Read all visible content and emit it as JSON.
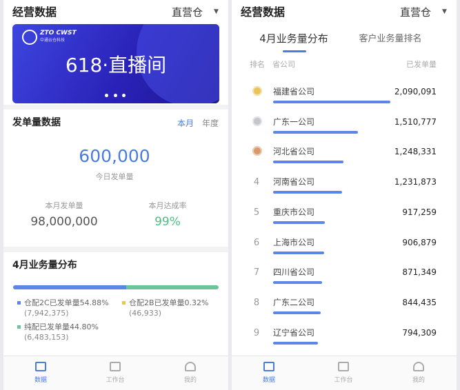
{
  "header": {
    "title": "经营数据",
    "warehouse": "直营仓"
  },
  "banner": {
    "logo": "ZTO CWST",
    "logo_sub": "中通云仓科技",
    "text": "618·直播间"
  },
  "orders": {
    "title": "发单量数据",
    "tabs": [
      "本月",
      "年度"
    ],
    "today_value": "600,000",
    "today_label": "今日发单量",
    "month_label": "本月发单量",
    "month_value": "98,000,000",
    "rate_label": "本月达成率",
    "rate_value": "99%"
  },
  "distribution": {
    "title": "4月业务量分布",
    "segments": [
      {
        "label": "仓配2C已发单量54.88%",
        "count": "(7,942,375)",
        "share": 54.88,
        "color": "#5b86e5"
      },
      {
        "label": "仓配2B已发单量0.32%",
        "count": "(46,933)",
        "share": 0.32,
        "color": "#f2c14e"
      },
      {
        "label": "纯配已发单量44.80%",
        "count": "(6,483,153)",
        "share": 44.8,
        "color": "#6cc59a"
      }
    ]
  },
  "ranking": {
    "tabs": [
      "4月业务量分布",
      "客户业务量排名"
    ],
    "columns": [
      "排名",
      "省公司",
      "已发单量"
    ],
    "bar_color": "#5b86e5",
    "rows": [
      {
        "rank": null,
        "name": "福建省公司",
        "value": 2090091,
        "value_label": "2,090,091"
      },
      {
        "rank": null,
        "name": "广东一公司",
        "value": 1510777,
        "value_label": "1,510,777"
      },
      {
        "rank": null,
        "name": "河北省公司",
        "value": 1248331,
        "value_label": "1,248,331"
      },
      {
        "rank": 4,
        "name": "河南省公司",
        "value": 1231873,
        "value_label": "1,231,873"
      },
      {
        "rank": 5,
        "name": "重庆市公司",
        "value": 917259,
        "value_label": "917,259"
      },
      {
        "rank": 6,
        "name": "上海市公司",
        "value": 906879,
        "value_label": "906,879"
      },
      {
        "rank": 7,
        "name": "四川省公司",
        "value": 871349,
        "value_label": "871,349"
      },
      {
        "rank": 8,
        "name": "广东二公司",
        "value": 844435,
        "value_label": "844,435"
      },
      {
        "rank": 9,
        "name": "辽宁省公司",
        "value": 794309,
        "value_label": "794,309"
      }
    ]
  },
  "tab_bar": [
    "数据",
    "工作台",
    "我的"
  ]
}
